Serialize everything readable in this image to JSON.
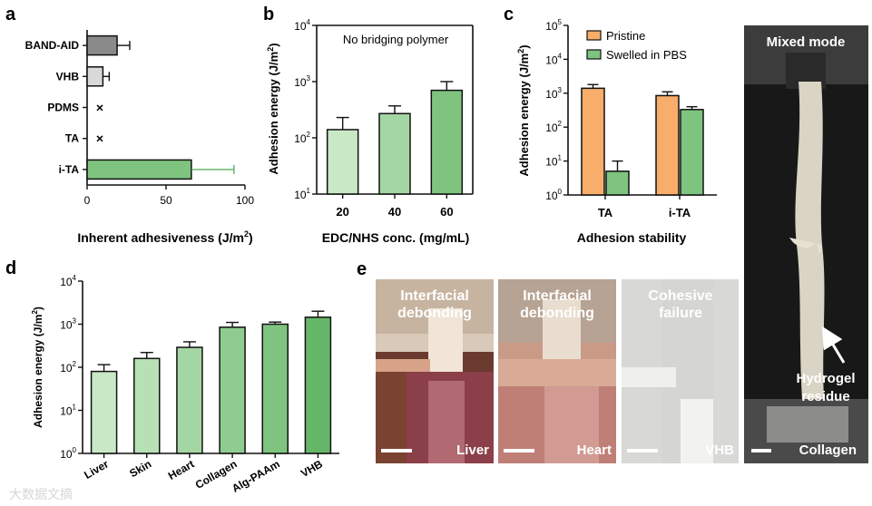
{
  "panel_letters": {
    "a": "a",
    "b": "b",
    "c": "c",
    "d": "d",
    "e": "e"
  },
  "colors": {
    "green": "#7ec47f",
    "light_green": "#c9e8c6",
    "mid_green": "#a4d6a3",
    "dark_green": "#5dae62",
    "orange": "#f8ad6a",
    "gray": "#8a8a8a",
    "light_gray": "#d9d9d9",
    "axis": "#111111"
  },
  "chart_data": [
    {
      "id": "a",
      "type": "bar",
      "orientation": "horizontal",
      "categories": [
        "BAND-AID",
        "VHB",
        "PDMS",
        "TA",
        "i-TA"
      ],
      "values": [
        19,
        10,
        0,
        0,
        66
      ],
      "errors": [
        8,
        4,
        0,
        0,
        27
      ],
      "no_adhesion_marker": "×",
      "no_adhesion": [
        false,
        false,
        true,
        true,
        false
      ],
      "xlabel": "Inherent adhesiveness (J/m",
      "xlabel_sup": "2",
      "xlabel_end": ")",
      "xlim": [
        0,
        100
      ],
      "xticks": [
        "0",
        "50",
        "100"
      ]
    },
    {
      "id": "b",
      "type": "bar",
      "scale": "log",
      "categories": [
        "20",
        "40",
        "60"
      ],
      "values": [
        140,
        270,
        700
      ],
      "errors": [
        90,
        100,
        300
      ],
      "annotation": "No bridging polymer",
      "xlabel": "EDC/NHS conc. (mg/mL)",
      "ylabel": "Adhesion energy (J/m",
      "ylabel_sup": "2",
      "ylabel_end": ")",
      "ylim": [
        10,
        10000
      ],
      "yticks": [
        {
          "base": "10",
          "exp": "1"
        },
        {
          "base": "10",
          "exp": "2"
        },
        {
          "base": "10",
          "exp": "3"
        },
        {
          "base": "10",
          "exp": "4"
        }
      ]
    },
    {
      "id": "c",
      "type": "bar",
      "scale": "log",
      "categories": [
        "TA",
        "i-TA"
      ],
      "series": [
        {
          "name": "Pristine",
          "values": [
            1400,
            850
          ],
          "errors": [
            400,
            250
          ]
        },
        {
          "name": "Swelled in PBS",
          "values": [
            5,
            330
          ],
          "errors": [
            5,
            70
          ]
        }
      ],
      "xlabel": "Adhesion stability",
      "ylabel": "Adhesion energy (J/m",
      "ylabel_sup": "2",
      "ylabel_end": ")",
      "ylim": [
        1,
        100000
      ],
      "yticks": [
        {
          "base": "10",
          "exp": "0"
        },
        {
          "base": "10",
          "exp": "1"
        },
        {
          "base": "10",
          "exp": "2"
        },
        {
          "base": "10",
          "exp": "3"
        },
        {
          "base": "10",
          "exp": "4"
        },
        {
          "base": "10",
          "exp": "5"
        }
      ],
      "legend_position": "top-left"
    },
    {
      "id": "d",
      "type": "bar",
      "scale": "log",
      "categories": [
        "Liver",
        "Skin",
        "Heart",
        "Collagen",
        "Alg-PAAm",
        "VHB"
      ],
      "values": [
        80,
        160,
        290,
        850,
        1000,
        1450
      ],
      "errors": [
        35,
        60,
        100,
        250,
        120,
        550
      ],
      "ylabel": "Adhesion energy (J/m",
      "ylabel_sup": "2",
      "ylabel_end": ")",
      "ylim": [
        1,
        10000
      ],
      "yticks": [
        {
          "base": "10",
          "exp": "0"
        },
        {
          "base": "10",
          "exp": "1"
        },
        {
          "base": "10",
          "exp": "2"
        },
        {
          "base": "10",
          "exp": "3"
        },
        {
          "base": "10",
          "exp": "4"
        }
      ]
    }
  ],
  "photos": {
    "tiles": [
      {
        "title_line1": "Interfacial",
        "title_line2": "debonding",
        "tissue": "Liver"
      },
      {
        "title_line1": "Interfacial",
        "title_line2": "debonding",
        "tissue": "Heart"
      },
      {
        "title_line1": "Cohesive",
        "title_line2": "failure",
        "tissue": "VHB"
      }
    ],
    "tall": {
      "title": "Mixed mode",
      "arrow_label_line1": "Hydrogel",
      "arrow_label_line2": "residue",
      "tissue": "Collagen"
    }
  },
  "watermark": "大数据文摘"
}
